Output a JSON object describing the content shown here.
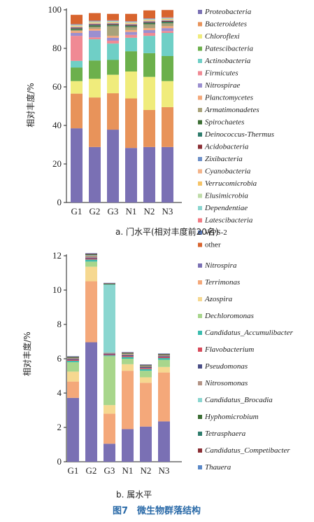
{
  "chart_data": [
    {
      "type": "bar",
      "stacked": true,
      "ylabel": "相对丰度/%",
      "ylim": [
        0,
        100
      ],
      "yticks": [
        0,
        20,
        40,
        60,
        80,
        100
      ],
      "categories": [
        "G1",
        "G2",
        "G3",
        "N1",
        "N2",
        "N3"
      ],
      "caption": "a. 门水平(相对丰度前20名)",
      "legend_position": "right",
      "series": [
        {
          "name": "Proteobacteria",
          "color": "#7a70b4",
          "values": [
            38.5,
            28.8,
            37.8,
            28.3,
            28.8,
            28.8
          ]
        },
        {
          "name": "Bacteroidetes",
          "color": "#e8935a",
          "values": [
            18.0,
            25.7,
            18.9,
            25.7,
            19.2,
            20.7
          ]
        },
        {
          "name": "Chloroflexi",
          "color": "#f0ec7c",
          "values": [
            6.5,
            9.7,
            9.6,
            14.0,
            17.2,
            13.5
          ]
        },
        {
          "name": "Patescibacteria",
          "color": "#6cb04c",
          "values": [
            7.0,
            9.5,
            7.7,
            10.5,
            12.3,
            13.0
          ]
        },
        {
          "name": "Actinobacteria",
          "color": "#6fcfc6",
          "values": [
            3.5,
            11.0,
            8.5,
            7.0,
            9.0,
            12.0
          ]
        },
        {
          "name": "Firmicutes",
          "color": "#f08a94",
          "values": [
            13.0,
            1.0,
            1.5,
            1.5,
            1.5,
            1.0
          ]
        },
        {
          "name": "Nitrospirae",
          "color": "#9b8fd0",
          "values": [
            1.5,
            3.5,
            1.5,
            1.5,
            1.5,
            1.5
          ]
        },
        {
          "name": "Planctomycetes",
          "color": "#f4a87a",
          "values": [
            1.0,
            1.0,
            1.0,
            1.0,
            1.0,
            1.0
          ]
        },
        {
          "name": "Armatimonadetes",
          "color": "#a8a27a",
          "values": [
            0.5,
            1.0,
            5.0,
            1.5,
            2.0,
            1.5
          ]
        },
        {
          "name": "Spirochaetes",
          "color": "#3c6e34",
          "values": [
            0.4,
            0.5,
            0.4,
            0.4,
            0.4,
            0.4
          ]
        },
        {
          "name": "Deinococcus-Thermus",
          "color": "#2e7c6c",
          "values": [
            0.4,
            0.4,
            0.4,
            0.4,
            0.4,
            0.4
          ]
        },
        {
          "name": "Acidobacteria",
          "color": "#8a2e34",
          "values": [
            0.4,
            0.4,
            0.4,
            0.4,
            0.4,
            0.4
          ]
        },
        {
          "name": "Zixibacteria",
          "color": "#6e90c8",
          "values": [
            0.3,
            0.3,
            0.3,
            0.3,
            0.3,
            0.3
          ]
        },
        {
          "name": "Cyanobacteria",
          "color": "#f4b48a",
          "values": [
            0.3,
            0.3,
            0.3,
            0.3,
            0.3,
            0.3
          ]
        },
        {
          "name": "Verrucomicrobia",
          "color": "#f6c468",
          "values": [
            0.3,
            0.3,
            0.3,
            0.3,
            0.3,
            0.3
          ]
        },
        {
          "name": "Elusimicrobia",
          "color": "#bfdca8",
          "values": [
            0.3,
            0.3,
            0.3,
            0.3,
            0.3,
            0.3
          ]
        },
        {
          "name": "Dependentiae",
          "color": "#8ad6d0",
          "values": [
            0.3,
            0.3,
            0.3,
            0.3,
            0.3,
            0.3
          ]
        },
        {
          "name": "Latescibacteria",
          "color": "#f27a82",
          "values": [
            0.2,
            0.2,
            0.2,
            0.2,
            0.2,
            0.2
          ]
        },
        {
          "name": "WPS-2",
          "color": "#5a78b4",
          "values": [
            0.2,
            0.2,
            0.2,
            0.2,
            0.2,
            0.2
          ]
        },
        {
          "name": "other",
          "color": "#d8642e",
          "values": [
            4.8,
            3.9,
            3.3,
            3.8,
            4.1,
            3.8
          ]
        }
      ]
    },
    {
      "type": "bar",
      "stacked": true,
      "ylabel": "相对丰度/%",
      "ylim": [
        0,
        12
      ],
      "yticks": [
        0,
        2,
        4,
        6,
        8,
        10,
        12
      ],
      "categories": [
        "G1",
        "G2",
        "G3",
        "N1",
        "N2",
        "N3"
      ],
      "caption": "b. 属水平",
      "legend_position": "right",
      "series": [
        {
          "name": "Nitrospira",
          "color": "#7a70b4",
          "values": [
            3.72,
            6.96,
            1.05,
            1.9,
            2.05,
            2.35
          ]
        },
        {
          "name": "Terrimonas",
          "color": "#f4a87a",
          "values": [
            0.95,
            3.55,
            1.75,
            3.4,
            2.55,
            2.85
          ]
        },
        {
          "name": "Azospira",
          "color": "#f6d890",
          "values": [
            0.58,
            0.85,
            0.5,
            0.38,
            0.32,
            0.32
          ]
        },
        {
          "name": "Dechloromonas",
          "color": "#a8d68c",
          "values": [
            0.55,
            0.3,
            2.85,
            0.32,
            0.38,
            0.42
          ]
        },
        {
          "name": "Candidatus_Accumulibacter",
          "color": "#3abcae",
          "values": [
            0.08,
            0.12,
            0.05,
            0.1,
            0.1,
            0.1
          ]
        },
        {
          "name": "Flavobacterium",
          "color": "#d84a5a",
          "values": [
            0.06,
            0.06,
            0.05,
            0.06,
            0.06,
            0.06
          ]
        },
        {
          "name": "Pseudomonas",
          "color": "#4a4e86",
          "values": [
            0.05,
            0.05,
            0.05,
            0.05,
            0.05,
            0.05
          ]
        },
        {
          "name": "Nitrosomonas",
          "color": "#b49486",
          "values": [
            0.06,
            0.12,
            0.05,
            0.08,
            0.06,
            0.06
          ]
        },
        {
          "name": "Candidatus_Brocadia",
          "color": "#8ad6d0",
          "values": [
            0.0,
            0.02,
            3.97,
            0.0,
            0.0,
            0.0
          ]
        },
        {
          "name": "Hyphomicrobium",
          "color": "#3c6e34",
          "values": [
            0.03,
            0.03,
            0.03,
            0.03,
            0.03,
            0.03
          ]
        },
        {
          "name": "Tetrasphaera",
          "color": "#2e7c6c",
          "values": [
            0.02,
            0.02,
            0.02,
            0.02,
            0.02,
            0.02
          ]
        },
        {
          "name": "Candidatus_Competibacter",
          "color": "#8a2e34",
          "values": [
            0.03,
            0.04,
            0.03,
            0.03,
            0.03,
            0.03
          ]
        },
        {
          "name": "Thauera",
          "color": "#5a88c8",
          "values": [
            0.02,
            0.03,
            0.02,
            0.02,
            0.02,
            0.02
          ]
        }
      ]
    }
  ],
  "figure_title": "图7　微生物群落结构"
}
